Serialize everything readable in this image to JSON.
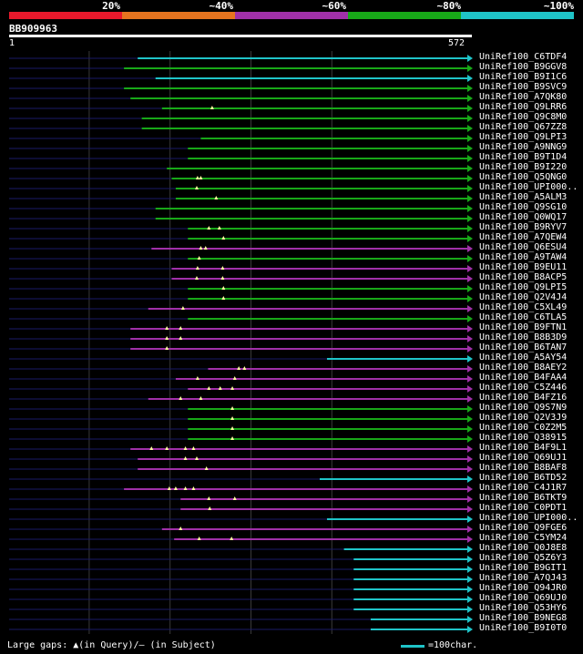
{
  "query_id": "BB909963",
  "ruler": {
    "start": "1",
    "end": "572"
  },
  "identity_scale": {
    "labels": [
      "20%",
      "~40%",
      "~60%",
      "~80%",
      "~100%"
    ],
    "colors": [
      "#e8192c",
      "#e6741f",
      "#a030a8",
      "#18a818",
      "#1fc4c8"
    ]
  },
  "legend": {
    "gaps": "Large gaps: ▲(in Query)/– (in Subject)",
    "scale": "=100char."
  },
  "chart_data": {
    "type": "bar",
    "title": "BB909963",
    "query_length": 572,
    "xlim": [
      1,
      572
    ],
    "grid_positions": [
      100,
      200,
      300,
      400
    ],
    "hits": [
      {
        "name": "UniRef100_C6TDF4",
        "start": 160,
        "end": 572,
        "class": 4,
        "ins": []
      },
      {
        "name": "UniRef100_B9GGV8",
        "start": 143,
        "end": 572,
        "class": 3,
        "ins": []
      },
      {
        "name": "UniRef100_B9I1C6",
        "start": 182,
        "end": 572,
        "class": 4,
        "ins": []
      },
      {
        "name": "UniRef100_B9SVC9",
        "start": 143,
        "end": 572,
        "class": 3,
        "ins": []
      },
      {
        "name": "UniRef100_A7QK80",
        "start": 151,
        "end": 572,
        "class": 3,
        "ins": []
      },
      {
        "name": "UniRef100_Q9LRR6",
        "start": 190,
        "end": 572,
        "class": 3,
        "ins": [
          252
        ]
      },
      {
        "name": "UniRef100_Q9C8M0",
        "start": 165,
        "end": 572,
        "class": 3,
        "ins": []
      },
      {
        "name": "UniRef100_Q67ZZ8",
        "start": 165,
        "end": 572,
        "class": 3,
        "ins": []
      },
      {
        "name": "UniRef100_Q9LPI3",
        "start": 238,
        "end": 572,
        "class": 3,
        "ins": []
      },
      {
        "name": "UniRef100_A9NNG9",
        "start": 222,
        "end": 572,
        "class": 3,
        "ins": []
      },
      {
        "name": "UniRef100_B9T1D4",
        "start": 222,
        "end": 572,
        "class": 3,
        "ins": []
      },
      {
        "name": "UniRef100_B9I220",
        "start": 196,
        "end": 572,
        "class": 3,
        "ins": []
      },
      {
        "name": "UniRef100_Q5QNG0",
        "start": 202,
        "end": 572,
        "class": 3,
        "ins": [
          234,
          238
        ]
      },
      {
        "name": "UniRef100_UPI000..",
        "start": 207,
        "end": 572,
        "class": 3,
        "ins": [
          233
        ]
      },
      {
        "name": "UniRef100_A5ALM3",
        "start": 207,
        "end": 572,
        "class": 3,
        "ins": [
          257
        ]
      },
      {
        "name": "UniRef100_Q9SG10",
        "start": 182,
        "end": 572,
        "class": 3,
        "ins": []
      },
      {
        "name": "UniRef100_Q0WQ17",
        "start": 182,
        "end": 572,
        "class": 3,
        "ins": []
      },
      {
        "name": "UniRef100_B9RYV7",
        "start": 222,
        "end": 572,
        "class": 3,
        "ins": [
          248,
          261
        ]
      },
      {
        "name": "UniRef100_A7QEW4",
        "start": 222,
        "end": 572,
        "class": 3,
        "ins": [
          266
        ]
      },
      {
        "name": "UniRef100_Q6ESU4",
        "start": 177,
        "end": 572,
        "class": 2,
        "ins": [
          238,
          244
        ]
      },
      {
        "name": "UniRef100_A9TAW4",
        "start": 222,
        "end": 572,
        "class": 3,
        "ins": [
          236
        ]
      },
      {
        "name": "UniRef100_B9EU11",
        "start": 202,
        "end": 572,
        "class": 2,
        "ins": [
          234,
          265
        ]
      },
      {
        "name": "UniRef100_B8ACP5",
        "start": 202,
        "end": 572,
        "class": 2,
        "ins": [
          233,
          265
        ]
      },
      {
        "name": "UniRef100_Q9LPI5",
        "start": 222,
        "end": 572,
        "class": 3,
        "ins": [
          266
        ]
      },
      {
        "name": "UniRef100_Q2V4J4",
        "start": 222,
        "end": 572,
        "class": 3,
        "ins": [
          266
        ]
      },
      {
        "name": "UniRef100_C5XL49",
        "start": 173,
        "end": 572,
        "class": 2,
        "ins": [
          216
        ]
      },
      {
        "name": "UniRef100_C6TLA5",
        "start": 222,
        "end": 572,
        "class": 3,
        "ins": []
      },
      {
        "name": "UniRef100_B9FTN1",
        "start": 151,
        "end": 572,
        "class": 2,
        "ins": [
          196,
          213
        ]
      },
      {
        "name": "UniRef100_B8B3D9",
        "start": 151,
        "end": 572,
        "class": 2,
        "ins": [
          196,
          213
        ]
      },
      {
        "name": "UniRef100_B6TAN7",
        "start": 151,
        "end": 572,
        "class": 2,
        "ins": [
          196
        ]
      },
      {
        "name": "UniRef100_A5AY54",
        "start": 394,
        "end": 572,
        "class": 4,
        "ins": []
      },
      {
        "name": "UniRef100_B8AEY2",
        "start": 247,
        "end": 572,
        "class": 2,
        "ins": [
          285,
          292
        ]
      },
      {
        "name": "UniRef100_B4FAA4",
        "start": 207,
        "end": 572,
        "class": 2,
        "ins": [
          234,
          280
        ]
      },
      {
        "name": "UniRef100_C5Z446",
        "start": 222,
        "end": 572,
        "class": 2,
        "ins": [
          248,
          262,
          277
        ]
      },
      {
        "name": "UniRef100_B4FZ16",
        "start": 173,
        "end": 572,
        "class": 2,
        "ins": [
          213,
          238
        ]
      },
      {
        "name": "UniRef100_Q9S7N9",
        "start": 222,
        "end": 572,
        "class": 3,
        "ins": [
          277
        ]
      },
      {
        "name": "UniRef100_Q2V3J9",
        "start": 222,
        "end": 572,
        "class": 3,
        "ins": [
          277
        ]
      },
      {
        "name": "UniRef100_C0Z2M5",
        "start": 222,
        "end": 572,
        "class": 3,
        "ins": [
          277
        ]
      },
      {
        "name": "UniRef100_Q38915",
        "start": 222,
        "end": 572,
        "class": 3,
        "ins": [
          277
        ]
      },
      {
        "name": "UniRef100_B4F9L1",
        "start": 151,
        "end": 572,
        "class": 2,
        "ins": [
          177,
          196,
          219,
          229
        ]
      },
      {
        "name": "UniRef100_Q69UJ1",
        "start": 160,
        "end": 572,
        "class": 2,
        "ins": [
          219,
          233
        ]
      },
      {
        "name": "UniRef100_B8BAF8",
        "start": 160,
        "end": 572,
        "class": 2,
        "ins": [
          245
        ]
      },
      {
        "name": "UniRef100_B6TD52",
        "start": 385,
        "end": 572,
        "class": 4,
        "ins": []
      },
      {
        "name": "UniRef100_C4J1R7",
        "start": 143,
        "end": 572,
        "class": 2,
        "ins": [
          199,
          207,
          219,
          229
        ]
      },
      {
        "name": "UniRef100_B6TKT9",
        "start": 213,
        "end": 572,
        "class": 2,
        "ins": [
          248,
          280
        ]
      },
      {
        "name": "UniRef100_C0PDT1",
        "start": 213,
        "end": 572,
        "class": 2,
        "ins": [
          249
        ]
      },
      {
        "name": "UniRef100_UPI000..",
        "start": 394,
        "end": 572,
        "class": 4,
        "ins": []
      },
      {
        "name": "UniRef100_Q9FGE6",
        "start": 190,
        "end": 572,
        "class": 2,
        "ins": [
          213
        ]
      },
      {
        "name": "UniRef100_C5YM24",
        "start": 205,
        "end": 572,
        "class": 2,
        "ins": [
          236,
          276
        ]
      },
      {
        "name": "UniRef100_Q0J8E8",
        "start": 415,
        "end": 572,
        "class": 4,
        "ins": []
      },
      {
        "name": "UniRef100_Q5Z6Y3",
        "start": 427,
        "end": 572,
        "class": 4,
        "ins": []
      },
      {
        "name": "UniRef100_B9GIT1",
        "start": 427,
        "end": 572,
        "class": 4,
        "ins": []
      },
      {
        "name": "UniRef100_A7QJ43",
        "start": 427,
        "end": 572,
        "class": 4,
        "ins": []
      },
      {
        "name": "UniRef100_Q94JR0",
        "start": 427,
        "end": 572,
        "class": 4,
        "ins": []
      },
      {
        "name": "UniRef100_Q69UJ0",
        "start": 427,
        "end": 572,
        "class": 4,
        "ins": []
      },
      {
        "name": "UniRef100_Q53HY6",
        "start": 427,
        "end": 572,
        "class": 4,
        "ins": []
      },
      {
        "name": "UniRef100_B9NEG8",
        "start": 448,
        "end": 572,
        "class": 4,
        "ins": []
      },
      {
        "name": "UniRef100_B9I0T0",
        "start": 448,
        "end": 572,
        "class": 4,
        "ins": []
      }
    ]
  }
}
